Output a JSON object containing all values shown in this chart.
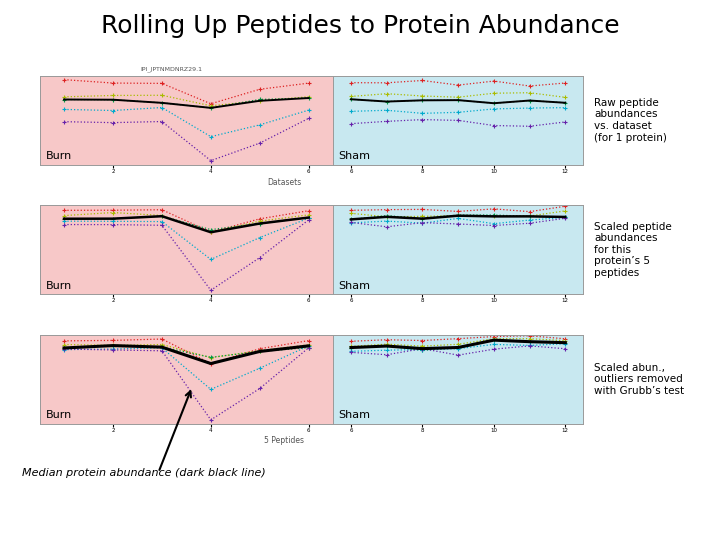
{
  "title": "Rolling Up Peptides to Protein Abundance",
  "title_fontsize": 18,
  "background_color": "#ffffff",
  "burn_bg": "#f7c8c8",
  "sham_bg": "#c8e8f0",
  "right_labels": [
    "Raw peptide\nabundances\nvs. dataset\n(for 1 protein)",
    "Scaled peptide\nabundances\nfor this\nprotein’s 5\npeptides",
    "Scaled abun.,\noutliers removed\nwith Grubb’s test"
  ],
  "burn_label": "Burn",
  "sham_label": "Sham",
  "bottom_note": "Median protein abundance (dark black line)",
  "mini_title": "IPI_JPTNMDNRZ29.1",
  "pep_colors": [
    "#dd2222",
    "#aabb00",
    "#009944",
    "#00aacc",
    "#6622aa"
  ],
  "median_color": "#000000"
}
